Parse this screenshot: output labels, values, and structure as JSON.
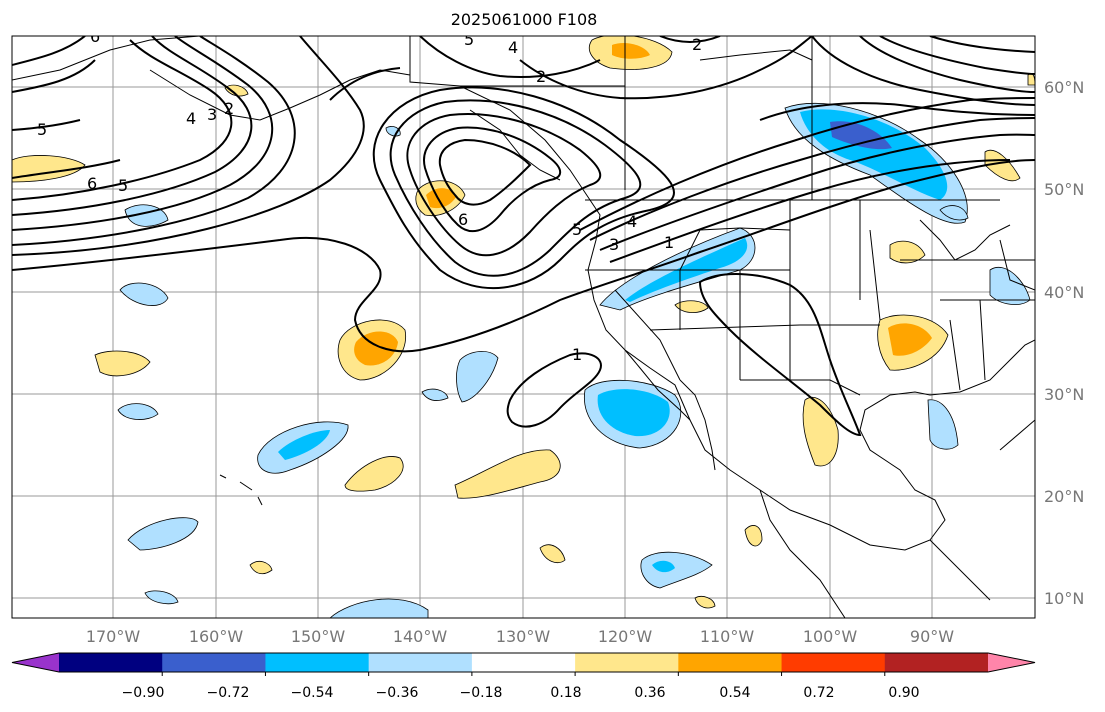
{
  "title": "2025061000 F108",
  "map": {
    "lat_labels": [
      "60°N",
      "50°N",
      "40°N",
      "30°N",
      "20°N",
      "10°N"
    ],
    "lon_labels": [
      "170°W",
      "160°W",
      "150°W",
      "140°W",
      "130°W",
      "120°W",
      "110°W",
      "100°W",
      "90°W"
    ],
    "contour_labels": [
      "5",
      "4",
      "2",
      "2",
      "4",
      "3",
      "5",
      "5",
      "6",
      "6",
      "3",
      "4",
      "5",
      "1",
      "1",
      "2",
      "6"
    ]
  },
  "colorbar": {
    "colors": [
      "#9933cc",
      "#000080",
      "#3a5fcd",
      "#00bfff",
      "#b0e0ff",
      "#ffffff",
      "#ffe78c",
      "#ffa500",
      "#ff3c00",
      "#b22222",
      "#ff85aa"
    ],
    "tick_labels": [
      "−0.90",
      "−0.72",
      "−0.54",
      "−0.36",
      "−0.18",
      "0.18",
      "0.36",
      "0.54",
      "0.72",
      "0.90"
    ]
  }
}
